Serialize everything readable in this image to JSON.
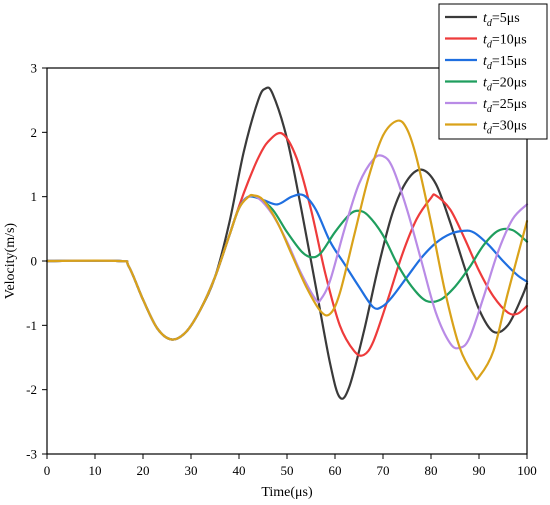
{
  "chart_data": {
    "type": "line",
    "title": "",
    "xlabel": "Time(μs)",
    "ylabel": "Velocity(m/s)",
    "xlim": [
      0,
      100
    ],
    "ylim": [
      -3,
      3
    ],
    "xticks": [
      0,
      10,
      20,
      30,
      40,
      50,
      60,
      70,
      80,
      90,
      100
    ],
    "yticks": [
      -3,
      -2,
      -1,
      0,
      1,
      2,
      3
    ],
    "grid": false,
    "legend_position": "top-right",
    "legend_prefix": "t",
    "legend_sub": "d",
    "series": [
      {
        "name": "=5μs",
        "color": "#3a3a3a",
        "x": [
          0,
          15,
          17,
          20,
          23,
          26,
          29,
          32,
          35,
          38,
          41,
          44,
          45.5,
          47,
          50,
          53,
          56,
          59,
          61,
          63,
          66,
          69,
          72,
          75,
          78,
          81,
          84,
          87,
          90,
          93,
          96,
          99,
          100
        ],
        "y": [
          0,
          0,
          -0.08,
          -0.6,
          -1.05,
          -1.22,
          -1.1,
          -0.75,
          -0.25,
          0.6,
          1.7,
          2.5,
          2.68,
          2.6,
          1.9,
          0.8,
          -0.4,
          -1.6,
          -2.12,
          -1.95,
          -1.1,
          -0.1,
          0.75,
          1.25,
          1.42,
          1.2,
          0.6,
          -0.1,
          -0.75,
          -1.1,
          -1.0,
          -0.55,
          -0.35
        ]
      },
      {
        "name": "=10μs",
        "color": "#ee3b3b",
        "x": [
          0,
          15,
          17,
          20,
          23,
          26,
          29,
          32,
          35,
          38,
          40,
          42,
          44,
          46,
          49,
          52,
          55,
          58,
          61,
          64,
          66,
          68,
          71,
          74,
          77,
          80,
          81,
          84,
          87,
          90,
          93,
          96,
          98,
          100
        ],
        "y": [
          0,
          0,
          -0.08,
          -0.6,
          -1.05,
          -1.22,
          -1.1,
          -0.75,
          -0.25,
          0.4,
          0.85,
          1.25,
          1.6,
          1.85,
          1.98,
          1.6,
          0.8,
          -0.2,
          -1.0,
          -1.4,
          -1.46,
          -1.25,
          -0.6,
          0.1,
          0.65,
          0.98,
          1.02,
          0.8,
          0.35,
          -0.15,
          -0.55,
          -0.8,
          -0.82,
          -0.7
        ]
      },
      {
        "name": "=15μs",
        "color": "#1f6fe0",
        "x": [
          0,
          15,
          17,
          20,
          23,
          26,
          29,
          32,
          35,
          38,
          40,
          42,
          45,
          48,
          51,
          53.5,
          56,
          59,
          62,
          65,
          68,
          70,
          72,
          75,
          78,
          81,
          84,
          87,
          89,
          92,
          95,
          98,
          100
        ],
        "y": [
          0,
          0,
          -0.08,
          -0.6,
          -1.05,
          -1.22,
          -1.1,
          -0.75,
          -0.25,
          0.4,
          0.82,
          1.0,
          0.95,
          0.88,
          1.0,
          1.02,
          0.8,
          0.3,
          -0.05,
          -0.4,
          -0.72,
          -0.7,
          -0.55,
          -0.25,
          0.05,
          0.28,
          0.42,
          0.47,
          0.44,
          0.25,
          0.0,
          -0.22,
          -0.32
        ]
      },
      {
        "name": "=20μs",
        "color": "#1f9e5e",
        "x": [
          0,
          15,
          17,
          20,
          23,
          26,
          29,
          32,
          35,
          38,
          40,
          42,
          44,
          47,
          50,
          53,
          55,
          57,
          60,
          63,
          65,
          67,
          70,
          73,
          76,
          79,
          82,
          85,
          88,
          91,
          94,
          97,
          100
        ],
        "y": [
          0,
          0,
          -0.08,
          -0.6,
          -1.05,
          -1.22,
          -1.1,
          -0.75,
          -0.25,
          0.4,
          0.82,
          1.0,
          0.98,
          0.8,
          0.45,
          0.15,
          0.06,
          0.12,
          0.45,
          0.72,
          0.78,
          0.7,
          0.4,
          -0.05,
          -0.4,
          -0.62,
          -0.6,
          -0.4,
          -0.1,
          0.25,
          0.47,
          0.48,
          0.3
        ]
      },
      {
        "name": "=25μs",
        "color": "#b98be6",
        "x": [
          0,
          15,
          17,
          20,
          23,
          26,
          29,
          32,
          35,
          38,
          40,
          42,
          44,
          47,
          50,
          53,
          56,
          57,
          59,
          62,
          65,
          68,
          70,
          72,
          75,
          78,
          81,
          84,
          86,
          88,
          91,
          94,
          97,
          100
        ],
        "y": [
          0,
          0,
          -0.08,
          -0.6,
          -1.05,
          -1.22,
          -1.1,
          -0.75,
          -0.25,
          0.4,
          0.82,
          1.0,
          0.98,
          0.72,
          0.3,
          -0.2,
          -0.6,
          -0.6,
          -0.3,
          0.5,
          1.2,
          1.58,
          1.63,
          1.45,
          0.8,
          0.0,
          -0.8,
          -1.28,
          -1.35,
          -1.2,
          -0.55,
          0.15,
          0.65,
          0.88
        ]
      },
      {
        "name": "=30μs",
        "color": "#d9a21a",
        "x": [
          0,
          15,
          17,
          20,
          23,
          26,
          29,
          32,
          35,
          38,
          40,
          42,
          43,
          45,
          48,
          51,
          54,
          57,
          59,
          61,
          64,
          67,
          70,
          73,
          75,
          77,
          80,
          83,
          86,
          89,
          90,
          93,
          96,
          100
        ],
        "y": [
          0,
          0,
          -0.08,
          -0.6,
          -1.05,
          -1.22,
          -1.1,
          -0.75,
          -0.25,
          0.4,
          0.82,
          1.0,
          1.02,
          0.95,
          0.6,
          0.1,
          -0.4,
          -0.78,
          -0.82,
          -0.5,
          0.4,
          1.3,
          1.95,
          2.18,
          2.05,
          1.6,
          0.6,
          -0.5,
          -1.35,
          -1.78,
          -1.8,
          -1.4,
          -0.5,
          0.62
        ]
      }
    ]
  }
}
